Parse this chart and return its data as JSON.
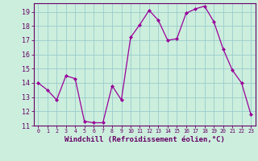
{
  "x": [
    0,
    1,
    2,
    3,
    4,
    5,
    6,
    7,
    8,
    9,
    10,
    11,
    12,
    13,
    14,
    15,
    16,
    17,
    18,
    19,
    20,
    21,
    22,
    23
  ],
  "y": [
    14,
    13.5,
    12.8,
    14.5,
    14.3,
    11.3,
    11.2,
    11.2,
    13.8,
    12.8,
    17.2,
    18.1,
    19.1,
    18.4,
    17.0,
    17.1,
    18.9,
    19.2,
    19.4,
    18.3,
    16.4,
    14.9,
    14.0,
    11.8
  ],
  "line_color": "#990099",
  "marker": "D",
  "marker_size": 2.0,
  "bg_color": "#cceedd",
  "grid_color": "#99cccc",
  "xlabel": "Windchill (Refroidissement éolien,°C)",
  "xlabel_color": "#660066",
  "tick_color": "#660066",
  "spine_color": "#660066",
  "ylim": [
    11,
    19.6
  ],
  "xlim": [
    -0.5,
    23.5
  ],
  "yticks": [
    11,
    12,
    13,
    14,
    15,
    16,
    17,
    18,
    19
  ],
  "xticks": [
    0,
    1,
    2,
    3,
    4,
    5,
    6,
    7,
    8,
    9,
    10,
    11,
    12,
    13,
    14,
    15,
    16,
    17,
    18,
    19,
    20,
    21,
    22,
    23
  ],
  "ytick_fontsize": 6.0,
  "xtick_fontsize": 4.8,
  "xlabel_fontsize": 6.5,
  "linewidth": 0.9
}
